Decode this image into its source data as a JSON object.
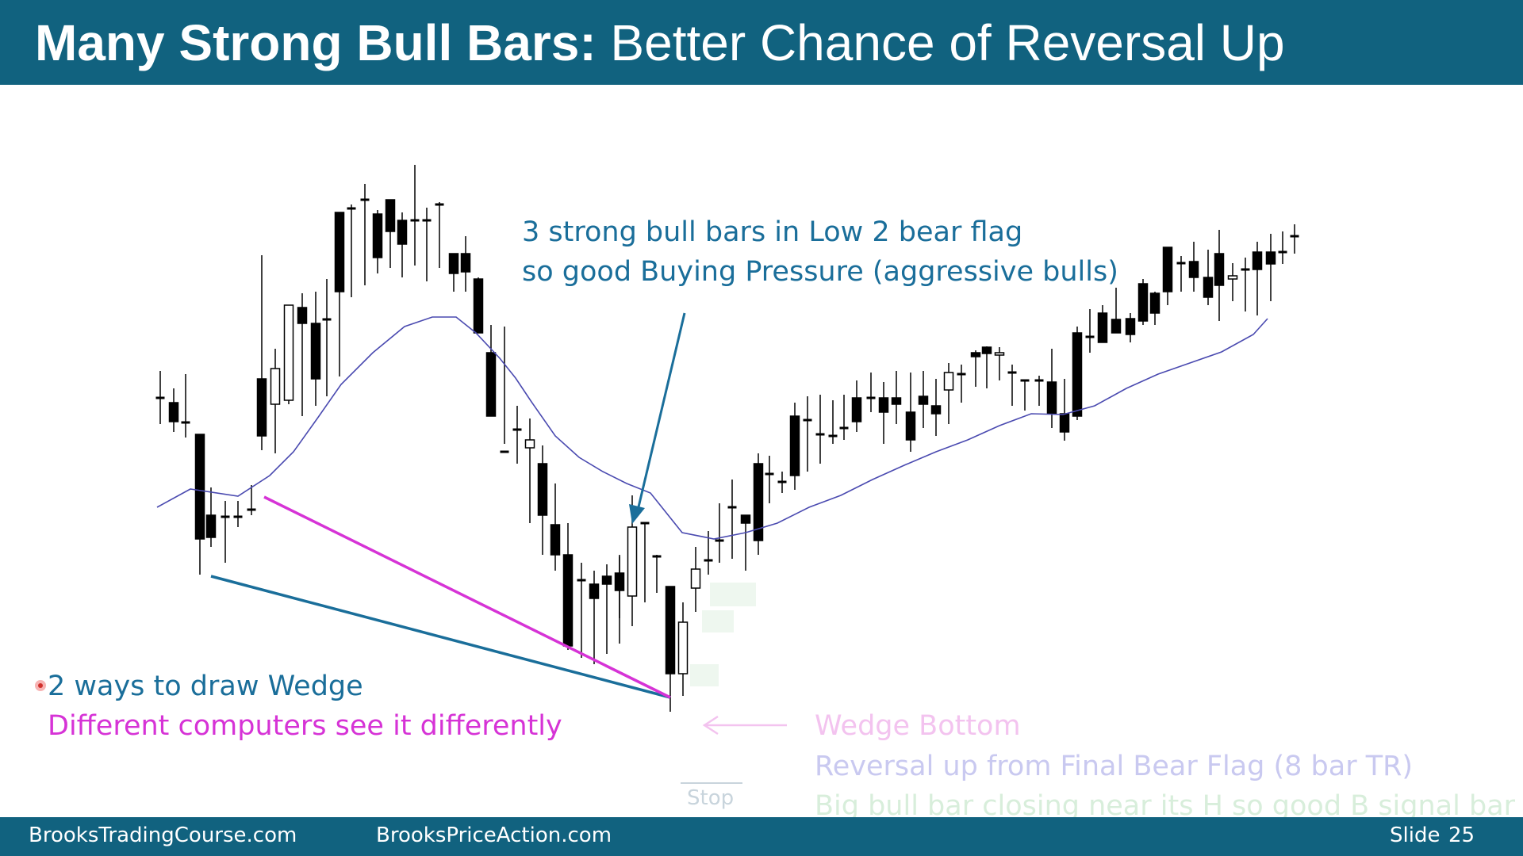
{
  "slide": {
    "title_bold": "Many Strong Bull Bars:",
    "title_rest": " Better Chance of Reversal Up"
  },
  "notes": {
    "buying_pressure_line1": "3 strong bull bars in Low 2 bear flag",
    "buying_pressure_line2": "so good Buying Pressure (aggressive bulls)",
    "wedge_ways": "2 ways to draw Wedge",
    "wedge_computers": "Different computers see it differently",
    "wedge_bottom": "Wedge Bottom",
    "reversal_up": "Reversal up from Final Bear Flag (8 bar TR)",
    "signal_bar": "Big bull bar closing near its H so good B signal bar",
    "stop": "Stop"
  },
  "footer": {
    "left": "BrooksTradingCourse.com",
    "center": "BrooksPriceAction.com",
    "slide_label": "Slide",
    "slide_number": "25"
  },
  "colors": {
    "header": "#11627f",
    "note_blue": "#1a6e9a",
    "note_magenta": "#d633d6",
    "moving_average": "#4a4ab0",
    "wedge_blue": "#1a6e9a",
    "wedge_magenta": "#d633d6"
  },
  "icons": {
    "pointer_dot": "laser-pointer-dot",
    "arrow": "down-arrow-icon",
    "left_arrow": "left-arrow-icon"
  }
}
